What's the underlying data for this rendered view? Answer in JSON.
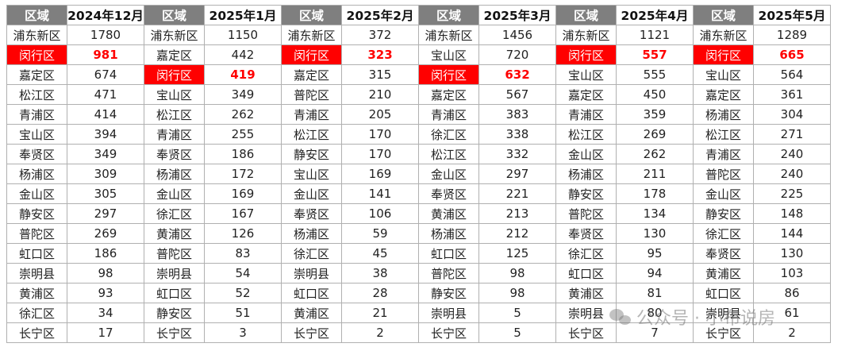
{
  "district_header": "区域",
  "highlight_district": "闵行区",
  "highlight_color": "#ff0000",
  "header_bg_color": "#7f7f7f",
  "months": [
    {
      "label": "2024年12月",
      "rows": [
        [
          "浦东新区",
          "1780"
        ],
        [
          "闵行区",
          "981"
        ],
        [
          "嘉定区",
          "674"
        ],
        [
          "松江区",
          "471"
        ],
        [
          "青浦区",
          "414"
        ],
        [
          "宝山区",
          "394"
        ],
        [
          "奉贤区",
          "349"
        ],
        [
          "杨浦区",
          "309"
        ],
        [
          "金山区",
          "305"
        ],
        [
          "静安区",
          "297"
        ],
        [
          "普陀区",
          "269"
        ],
        [
          "虹口区",
          "186"
        ],
        [
          "崇明县",
          "98"
        ],
        [
          "黄浦区",
          "93"
        ],
        [
          "徐汇区",
          "34"
        ],
        [
          "长宁区",
          "17"
        ]
      ]
    },
    {
      "label": "2025年1月",
      "rows": [
        [
          "浦东新区",
          "1150"
        ],
        [
          "嘉定区",
          "442"
        ],
        [
          "闵行区",
          "419"
        ],
        [
          "宝山区",
          "349"
        ],
        [
          "松江区",
          "262"
        ],
        [
          "青浦区",
          "255"
        ],
        [
          "奉贤区",
          "186"
        ],
        [
          "杨浦区",
          "172"
        ],
        [
          "金山区",
          "169"
        ],
        [
          "徐汇区",
          "167"
        ],
        [
          "黄浦区",
          "126"
        ],
        [
          "普陀区",
          "83"
        ],
        [
          "崇明县",
          "54"
        ],
        [
          "虹口区",
          "52"
        ],
        [
          "静安区",
          "51"
        ],
        [
          "长宁区",
          "3"
        ]
      ]
    },
    {
      "label": "2025年2月",
      "rows": [
        [
          "浦东新区",
          "372"
        ],
        [
          "闵行区",
          "323"
        ],
        [
          "嘉定区",
          "315"
        ],
        [
          "普陀区",
          "210"
        ],
        [
          "青浦区",
          "205"
        ],
        [
          "松江区",
          "170"
        ],
        [
          "静安区",
          "170"
        ],
        [
          "宝山区",
          "169"
        ],
        [
          "金山区",
          "141"
        ],
        [
          "奉贤区",
          "106"
        ],
        [
          "杨浦区",
          "59"
        ],
        [
          "徐汇区",
          "45"
        ],
        [
          "崇明县",
          "38"
        ],
        [
          "虹口区",
          "28"
        ],
        [
          "黄浦区",
          "21"
        ],
        [
          "长宁区",
          "2"
        ]
      ]
    },
    {
      "label": "2025年3月",
      "rows": [
        [
          "浦东新区",
          "1456"
        ],
        [
          "宝山区",
          "720"
        ],
        [
          "闵行区",
          "632"
        ],
        [
          "嘉定区",
          "567"
        ],
        [
          "青浦区",
          "383"
        ],
        [
          "徐汇区",
          "338"
        ],
        [
          "松江区",
          "332"
        ],
        [
          "金山区",
          "297"
        ],
        [
          "奉贤区",
          "221"
        ],
        [
          "黄浦区",
          "213"
        ],
        [
          "杨浦区",
          "212"
        ],
        [
          "虹口区",
          "125"
        ],
        [
          "普陀区",
          "98"
        ],
        [
          "静安区",
          "98"
        ],
        [
          "崇明县",
          "5"
        ],
        [
          "长宁区",
          "5"
        ]
      ]
    },
    {
      "label": "2025年4月",
      "rows": [
        [
          "浦东新区",
          "1121"
        ],
        [
          "闵行区",
          "557"
        ],
        [
          "宝山区",
          "555"
        ],
        [
          "嘉定区",
          "450"
        ],
        [
          "青浦区",
          "359"
        ],
        [
          "松江区",
          "269"
        ],
        [
          "金山区",
          "262"
        ],
        [
          "杨浦区",
          "211"
        ],
        [
          "静安区",
          "178"
        ],
        [
          "普陀区",
          "134"
        ],
        [
          "奉贤区",
          "130"
        ],
        [
          "徐汇区",
          "95"
        ],
        [
          "虹口区",
          "94"
        ],
        [
          "黄浦区",
          "81"
        ],
        [
          "崇明县",
          "80"
        ],
        [
          "长宁区",
          "7"
        ]
      ]
    },
    {
      "label": "2025年5月",
      "rows": [
        [
          "浦东新区",
          "1289"
        ],
        [
          "闵行区",
          "665"
        ],
        [
          "宝山区",
          "564"
        ],
        [
          "嘉定区",
          "361"
        ],
        [
          "杨浦区",
          "304"
        ],
        [
          "松江区",
          "271"
        ],
        [
          "青浦区",
          "240"
        ],
        [
          "普陀区",
          "240"
        ],
        [
          "金山区",
          "225"
        ],
        [
          "静安区",
          "148"
        ],
        [
          "徐汇区",
          "144"
        ],
        [
          "奉贤区",
          "130"
        ],
        [
          "黄浦区",
          "103"
        ],
        [
          "虹口区",
          "86"
        ],
        [
          "崇明县",
          "61"
        ],
        [
          "长宁区",
          "2"
        ]
      ]
    }
  ],
  "watermark": {
    "icon": "wechat-icon",
    "text": "公众号 · 小布说房"
  }
}
